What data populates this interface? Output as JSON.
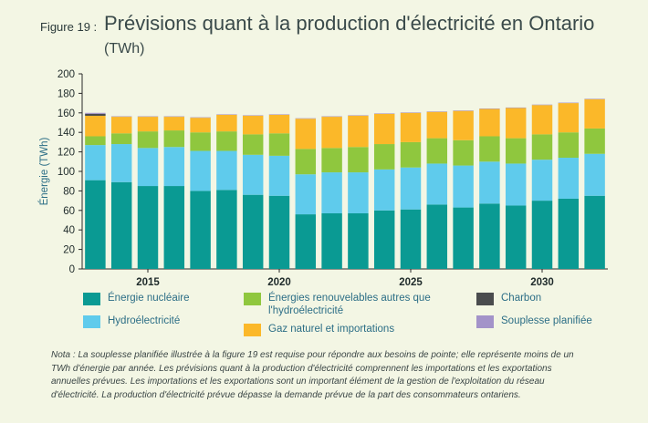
{
  "figure_label": "Figure 19 :",
  "title": "Prévisions quant à la production d'électricité en Ontario",
  "title_units": "(TWh)",
  "note": "Nota : La souplesse planifiée illustrée à la figure 19 est requise pour répondre aux besoins de pointe; elle représente moins de un TWh d'énergie par année. Les prévisions quant à la production d'électricité comprennent les importations et les exportations annuelles prévues. Les importations et les exportations sont un important élément de la gestion de l'exploitation du réseau d'électricité. La production d'électricité prévue dépasse la demande prévue de la part des consommateurs ontariens.",
  "colors": {
    "background": "#f3f6e4",
    "axis_text": "#2c6e86",
    "nuclear": "#0a9a93",
    "hydro": "#5fcbec",
    "renewables": "#8fc73e",
    "gas_imports": "#fbb829",
    "coal": "#4a4c4e",
    "flex": "#a393c9"
  },
  "chart_data": {
    "type": "bar",
    "stacked": true,
    "x": [
      2013,
      2014,
      2015,
      2016,
      2017,
      2018,
      2019,
      2020,
      2021,
      2022,
      2023,
      2024,
      2025,
      2026,
      2027,
      2028,
      2029,
      2030,
      2031,
      2032
    ],
    "x_ticks": [
      2015,
      2020,
      2025,
      2030
    ],
    "ylabel": "Énergie (TWh)",
    "ylim": [
      0,
      200
    ],
    "y_ticks": [
      0,
      20,
      40,
      60,
      80,
      100,
      120,
      140,
      160,
      180,
      200
    ],
    "grid": false,
    "series": [
      {
        "name": "Énergie nucléaire",
        "color_key": "nuclear",
        "values": [
          91,
          89,
          85,
          85,
          80,
          81,
          76,
          75,
          56,
          57,
          57,
          60,
          61,
          66,
          63,
          67,
          65,
          70,
          72,
          75
        ]
      },
      {
        "name": "Hydroélectricité",
        "color_key": "hydro",
        "values": [
          36,
          39,
          39,
          40,
          41,
          40,
          41,
          41,
          41,
          42,
          42,
          42,
          43,
          42,
          43,
          43,
          43,
          42,
          42,
          43
        ]
      },
      {
        "name": "Énergies renouvelables autres que l'hydroélectricité",
        "color_key": "renewables",
        "values": [
          9,
          11,
          17,
          17,
          19,
          20,
          21,
          23,
          26,
          25,
          26,
          26,
          26,
          26,
          26,
          26,
          26,
          26,
          26,
          26
        ]
      },
      {
        "name": "Gaz naturel et importations",
        "color_key": "gas_imports",
        "values": [
          21,
          17,
          15,
          14,
          15,
          17,
          19,
          19,
          31,
          32,
          32,
          31,
          30,
          27,
          30,
          28,
          31,
          30,
          30,
          30
        ]
      },
      {
        "name": "Charbon",
        "color_key": "coal",
        "values": [
          2,
          0,
          0,
          0,
          0,
          0,
          0,
          0,
          0,
          0,
          0,
          0,
          0,
          0,
          0,
          0,
          0,
          0,
          0,
          0
        ]
      },
      {
        "name": "Souplesse planifiée",
        "color_key": "flex",
        "values": [
          1,
          0.5,
          0.5,
          0.5,
          0.5,
          0.5,
          0.5,
          0.5,
          0.5,
          0.5,
          0.5,
          0.5,
          0.5,
          0.5,
          0.5,
          0.5,
          0.5,
          0.5,
          0.5,
          0.5
        ]
      }
    ],
    "legend": [
      "Énergie nucléaire",
      "Hydroélectricité",
      "Énergies renouvelables autres que l'hydroélectricité",
      "Gaz naturel et importations",
      "Charbon",
      "Souplesse planifiée"
    ]
  }
}
